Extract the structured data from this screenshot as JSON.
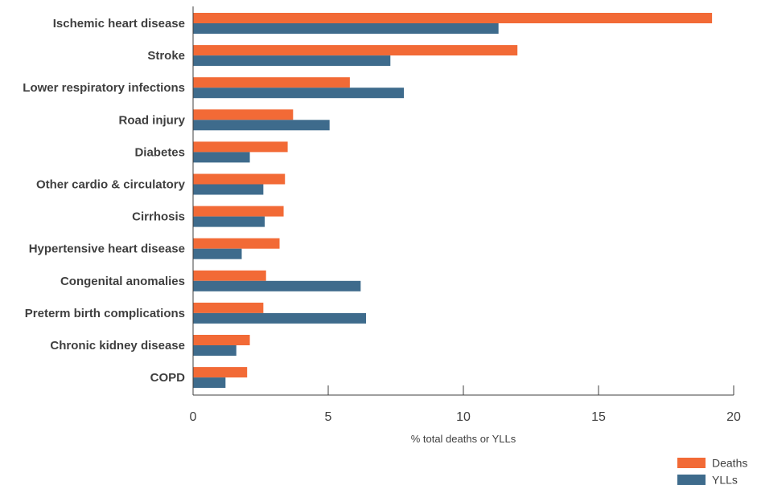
{
  "chart_data": {
    "type": "bar",
    "orientation": "horizontal",
    "categories": [
      "Ischemic heart disease",
      "Stroke",
      "Lower respiratory infections",
      "Road injury",
      "Diabetes",
      "Other cardio & circulatory",
      "Cirrhosis",
      "Hypertensive heart disease",
      "Congenital anomalies",
      "Preterm birth complications",
      "Chronic kidney disease",
      "COPD"
    ],
    "series": [
      {
        "name": "Deaths",
        "color": "#f26a36",
        "values": [
          19.2,
          12.0,
          5.8,
          3.7,
          3.5,
          3.4,
          3.35,
          3.2,
          2.7,
          2.6,
          2.1,
          2.0
        ]
      },
      {
        "name": "YLLs",
        "color": "#3e6b8c",
        "values": [
          11.3,
          7.3,
          7.8,
          5.05,
          2.1,
          2.6,
          2.65,
          1.8,
          6.2,
          6.4,
          1.6,
          1.2
        ]
      }
    ],
    "xlabel": "% total deaths or YLLs",
    "xlim": [
      0,
      20
    ],
    "xticks": [
      0,
      5,
      10,
      15,
      20
    ],
    "grid": false,
    "legend_position": "bottom-right"
  }
}
